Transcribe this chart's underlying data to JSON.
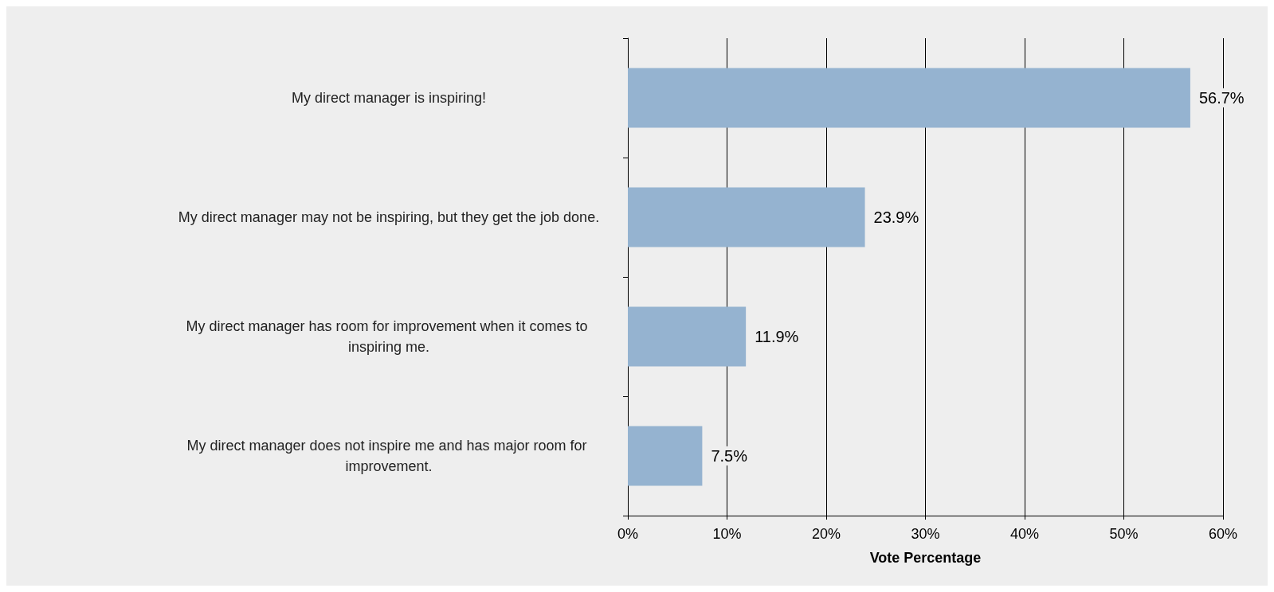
{
  "chart_data": {
    "type": "bar",
    "orientation": "horizontal",
    "xlabel": "Vote Percentage",
    "categories": [
      "My direct manager is inspiring!",
      "My direct manager may not be inspiring, but they get the job done.",
      "My direct manager has room for improvement when it comes to inspiring me.",
      "My direct manager does not inspire me and has major room for improvement."
    ],
    "values": [
      56.7,
      23.9,
      11.9,
      7.5
    ],
    "value_labels": [
      "56.7%",
      "23.9%",
      "11.9%",
      "7.5%"
    ],
    "color": "#95b3d0",
    "xlim": [
      0,
      60
    ],
    "xticks": [
      {
        "value": 0,
        "label": "0%"
      },
      {
        "value": 10,
        "label": "10%"
      },
      {
        "value": 20,
        "label": "20%"
      },
      {
        "value": 30,
        "label": "30%"
      },
      {
        "value": 40,
        "label": "40%"
      },
      {
        "value": 50,
        "label": "50%"
      },
      {
        "value": 60,
        "label": "60%"
      }
    ],
    "grid": "x"
  }
}
